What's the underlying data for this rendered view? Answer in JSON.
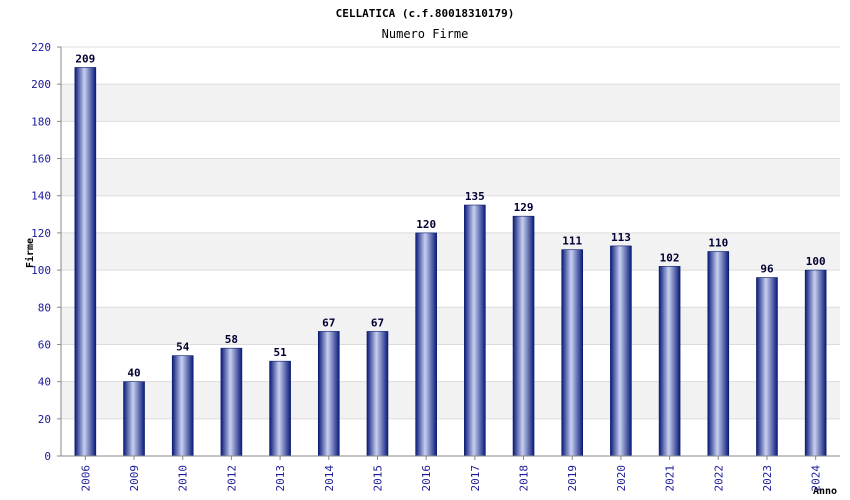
{
  "chart_data": {
    "type": "bar",
    "title": "CELLATICA (c.f.80018310179)",
    "subtitle": "Numero Firme",
    "xlabel": "Anno",
    "ylabel": "Firme",
    "categories": [
      "2006",
      "2009",
      "2010",
      "2012",
      "2013",
      "2014",
      "2015",
      "2016",
      "2017",
      "2018",
      "2019",
      "2020",
      "2021",
      "2022",
      "2023",
      "2024"
    ],
    "values": [
      209,
      40,
      54,
      58,
      51,
      67,
      67,
      120,
      135,
      129,
      111,
      113,
      102,
      110,
      96,
      100
    ],
    "ylim": [
      0,
      220
    ],
    "yticks": [
      0,
      20,
      40,
      60,
      80,
      100,
      120,
      140,
      160,
      180,
      200,
      220
    ],
    "grid": true,
    "colors": {
      "bar_dark": "#0a1a7a",
      "bar_light": "#c8d0f0",
      "band": "#f2f2f2",
      "tick_text": "#1a1a9a"
    }
  }
}
